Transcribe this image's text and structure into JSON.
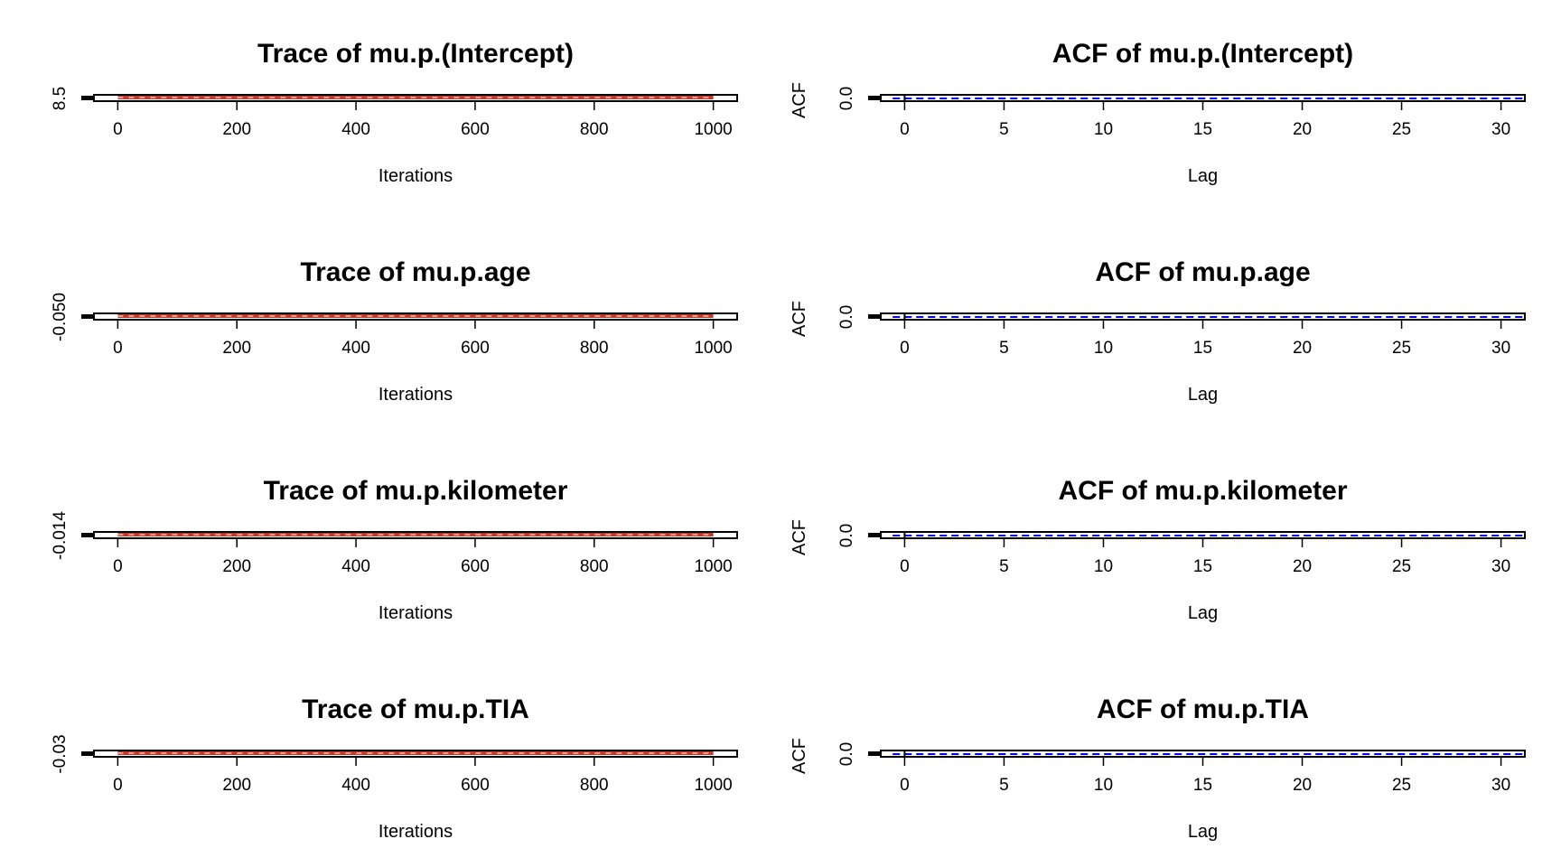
{
  "chart_data": [
    {
      "type": "line",
      "title": "Trace of mu.p.(Intercept)",
      "xlabel": "Iterations",
      "ylabel": "",
      "xlim": [
        -40,
        1040
      ],
      "x_ticks": [
        0,
        200,
        400,
        600,
        800,
        1000
      ],
      "y_ticks": [
        "8.5"
      ],
      "series_color": "#c0392b"
    },
    {
      "type": "bar",
      "title": "ACF of mu.p.(Intercept)",
      "xlabel": "Lag",
      "ylabel": "ACF",
      "xlim": [
        -1.2,
        31.2
      ],
      "x_ticks": [
        0,
        5,
        10,
        15,
        20,
        25,
        30
      ],
      "y_ticks": [
        "0.0"
      ],
      "ref_line_color": "#0000ff"
    },
    {
      "type": "line",
      "title": "Trace of mu.p.age",
      "xlabel": "Iterations",
      "ylabel": "",
      "xlim": [
        -40,
        1040
      ],
      "x_ticks": [
        0,
        200,
        400,
        600,
        800,
        1000
      ],
      "y_ticks": [
        "-0.050"
      ],
      "series_color": "#c0392b"
    },
    {
      "type": "bar",
      "title": "ACF of mu.p.age",
      "xlabel": "Lag",
      "ylabel": "ACF",
      "xlim": [
        -1.2,
        31.2
      ],
      "x_ticks": [
        0,
        5,
        10,
        15,
        20,
        25,
        30
      ],
      "y_ticks": [
        "0.0"
      ],
      "ref_line_color": "#0000ff"
    },
    {
      "type": "line",
      "title": "Trace of mu.p.kilometer",
      "xlabel": "Iterations",
      "ylabel": "",
      "xlim": [
        -40,
        1040
      ],
      "x_ticks": [
        0,
        200,
        400,
        600,
        800,
        1000
      ],
      "y_ticks": [
        "-0.014"
      ],
      "series_color": "#c0392b"
    },
    {
      "type": "bar",
      "title": "ACF of mu.p.kilometer",
      "xlabel": "Lag",
      "ylabel": "ACF",
      "xlim": [
        -1.2,
        31.2
      ],
      "x_ticks": [
        0,
        5,
        10,
        15,
        20,
        25,
        30
      ],
      "y_ticks": [
        "0.0"
      ],
      "ref_line_color": "#0000ff"
    },
    {
      "type": "line",
      "title": "Trace of mu.p.TIA",
      "xlabel": "Iterations",
      "ylabel": "",
      "xlim": [
        -40,
        1040
      ],
      "x_ticks": [
        0,
        200,
        400,
        600,
        800,
        1000
      ],
      "y_ticks": [
        "-0.03"
      ],
      "series_color": "#c0392b"
    },
    {
      "type": "bar",
      "title": "ACF of mu.p.TIA",
      "xlabel": "Lag",
      "ylabel": "ACF",
      "xlim": [
        -1.2,
        31.2
      ],
      "x_ticks": [
        0,
        5,
        10,
        15,
        20,
        25,
        30
      ],
      "y_ticks": [
        "0.0"
      ],
      "ref_line_color": "#0000ff"
    }
  ]
}
